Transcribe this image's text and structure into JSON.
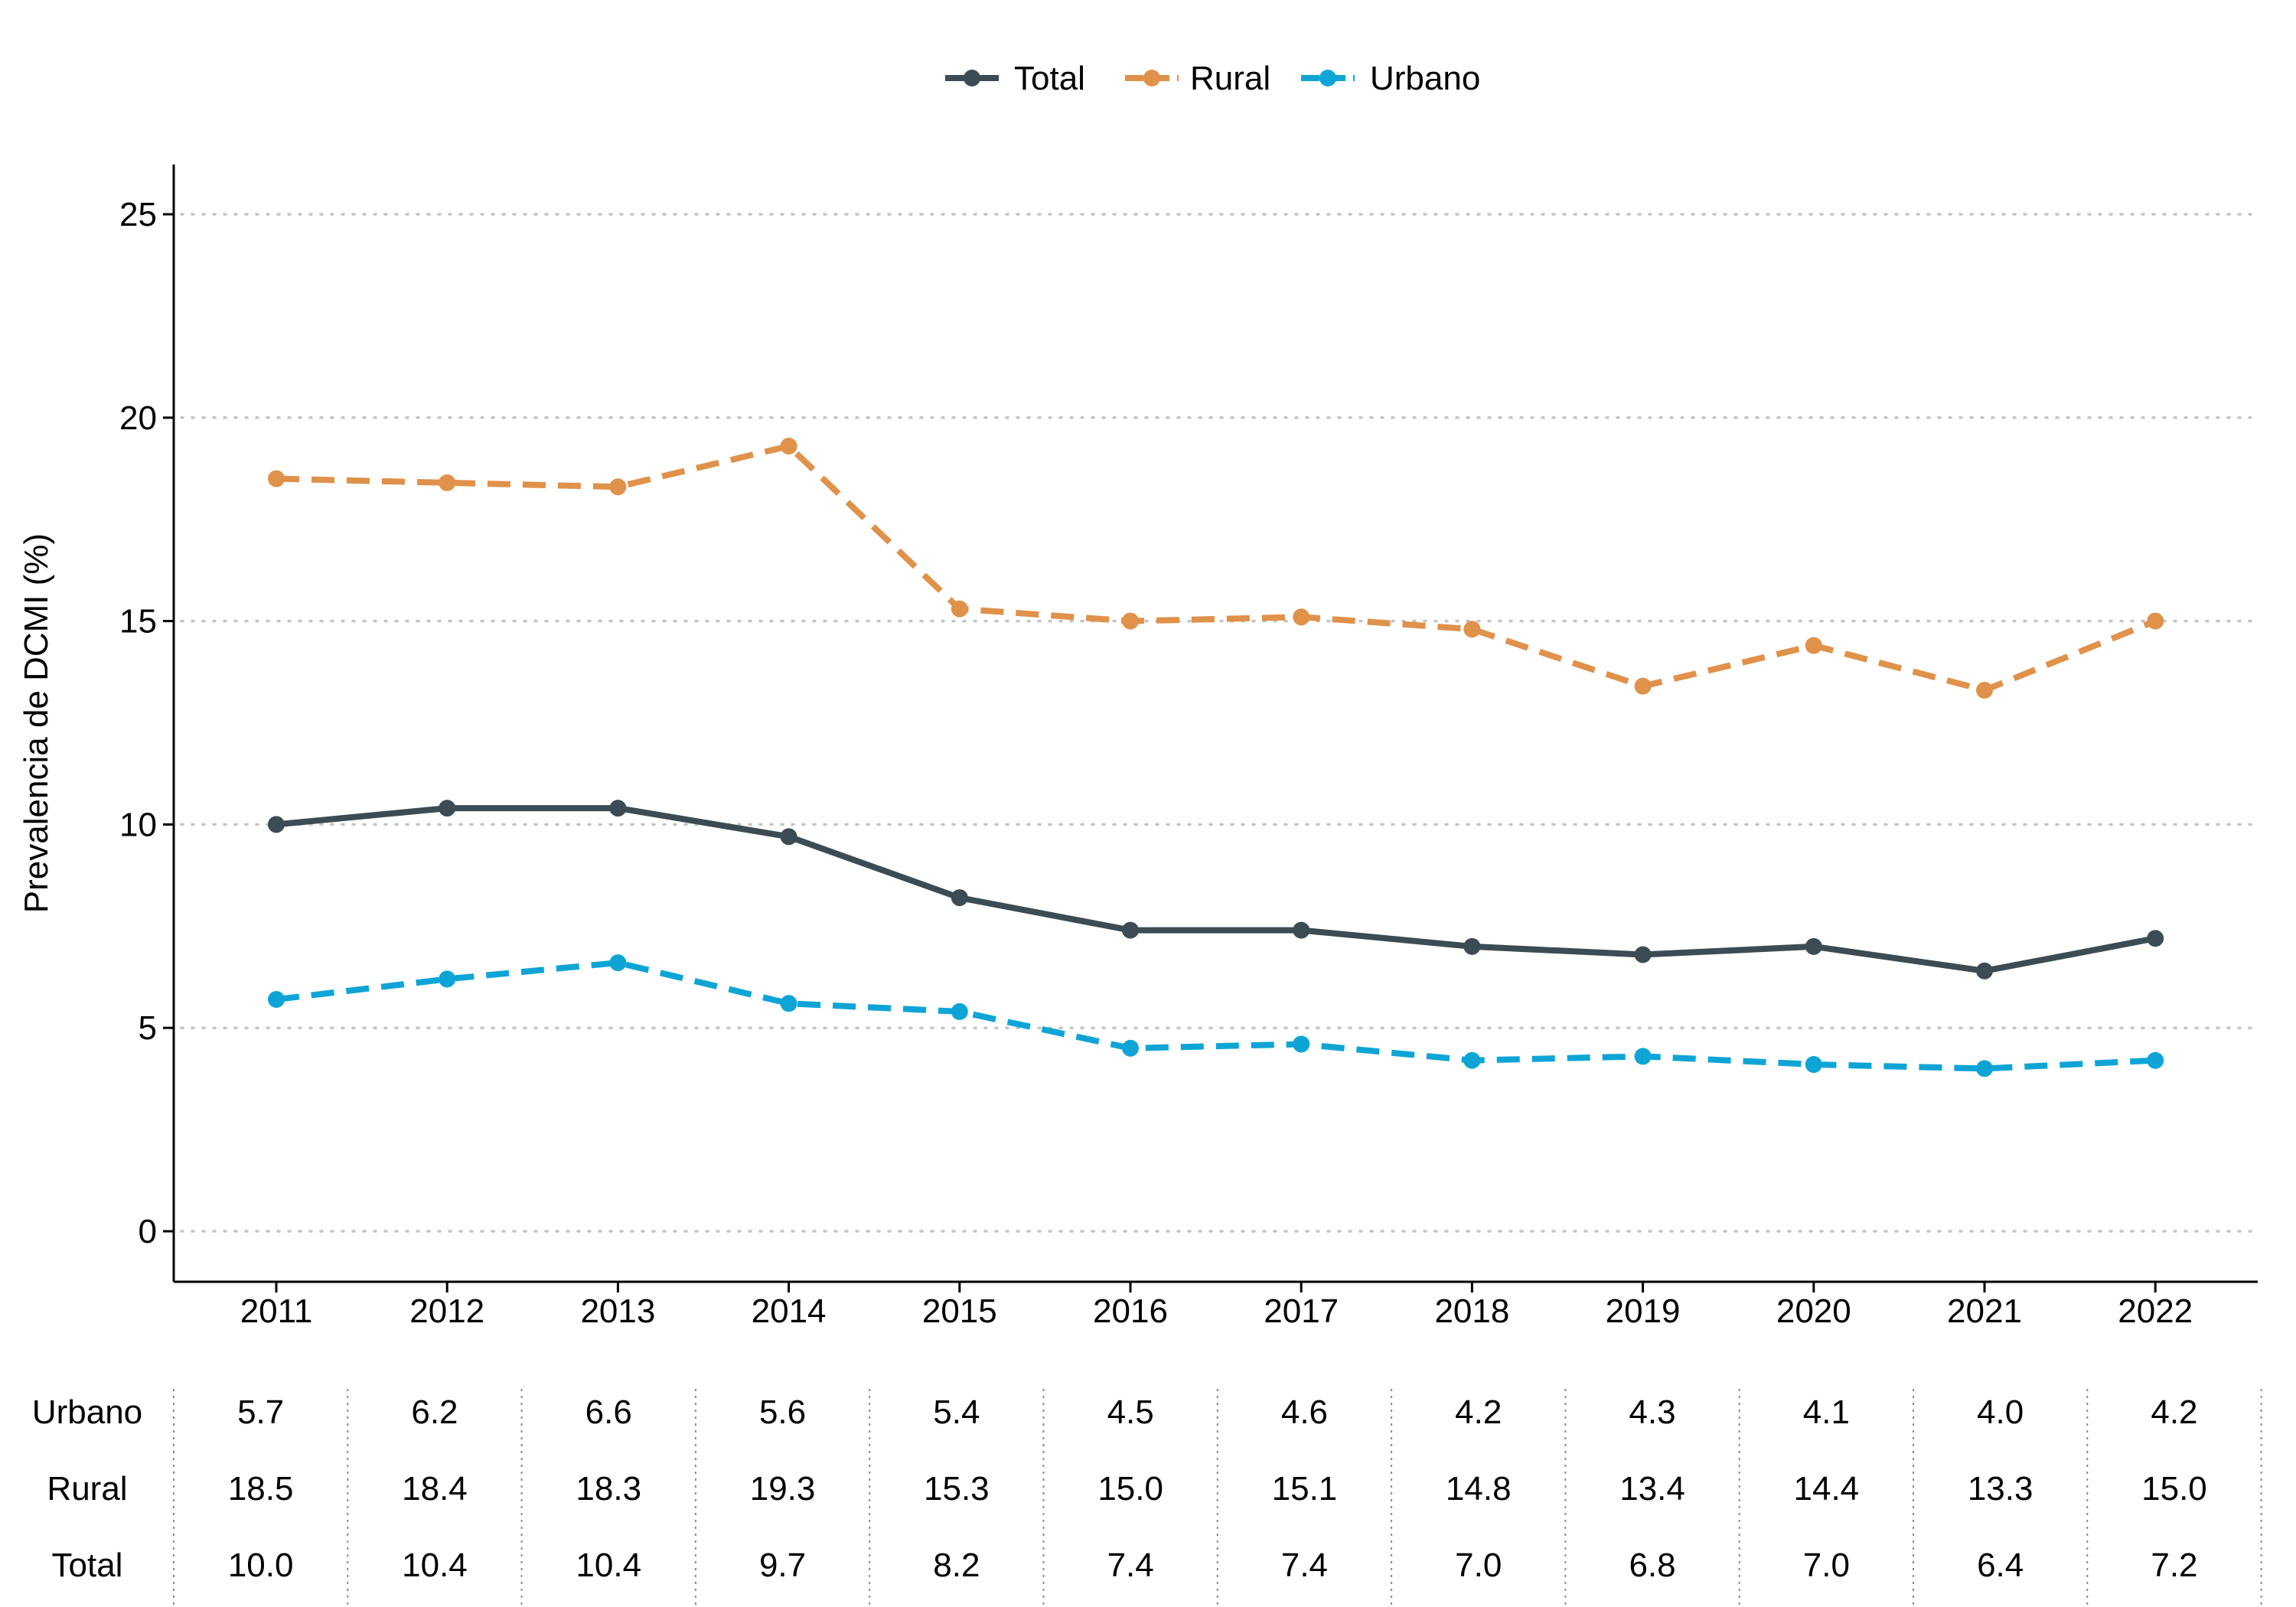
{
  "chart_data": {
    "type": "line",
    "title": "",
    "xlabel": "",
    "ylabel": "Prevalencia de DCMI (%)",
    "x": [
      "2011",
      "2012",
      "2013",
      "2014",
      "2015",
      "2016",
      "2017",
      "2018",
      "2019",
      "2020",
      "2021",
      "2022"
    ],
    "ylim": [
      0,
      25
    ],
    "yticks": [
      0,
      5,
      10,
      15,
      20,
      25
    ],
    "grid": "horizontal dotted",
    "legend_position": "top",
    "series": [
      {
        "name": "Total",
        "color": "#3b4c54",
        "dash": "solid",
        "values": [
          10.0,
          10.4,
          10.4,
          9.7,
          8.2,
          7.4,
          7.4,
          7.0,
          6.8,
          7.0,
          6.4,
          7.2
        ]
      },
      {
        "name": "Rural",
        "color": "#e0914a",
        "dash": "dashed",
        "values": [
          18.5,
          18.4,
          18.3,
          19.3,
          15.3,
          15.0,
          15.1,
          14.8,
          13.4,
          14.4,
          13.3,
          15.0
        ]
      },
      {
        "name": "Urbano",
        "color": "#0ea5d6",
        "dash": "dashed",
        "values": [
          5.7,
          6.2,
          6.6,
          5.6,
          5.4,
          4.5,
          4.6,
          4.2,
          4.3,
          4.1,
          4.0,
          4.2
        ]
      }
    ],
    "table": {
      "rows": [
        {
          "label": "Urbano",
          "values": [
            "5.7",
            "6.2",
            "6.6",
            "5.6",
            "5.4",
            "4.5",
            "4.6",
            "4.2",
            "4.3",
            "4.1",
            "4.0",
            "4.2"
          ]
        },
        {
          "label": "Rural",
          "values": [
            "18.5",
            "18.4",
            "18.3",
            "19.3",
            "15.3",
            "15.0",
            "15.1",
            "14.8",
            "13.4",
            "14.4",
            "13.3",
            "15.0"
          ]
        },
        {
          "label": "Total",
          "values": [
            "10.0",
            "10.4",
            "10.4",
            "9.7",
            "8.2",
            "7.4",
            "7.4",
            "7.0",
            "6.8",
            "7.0",
            "6.4",
            "7.2"
          ]
        }
      ]
    }
  }
}
